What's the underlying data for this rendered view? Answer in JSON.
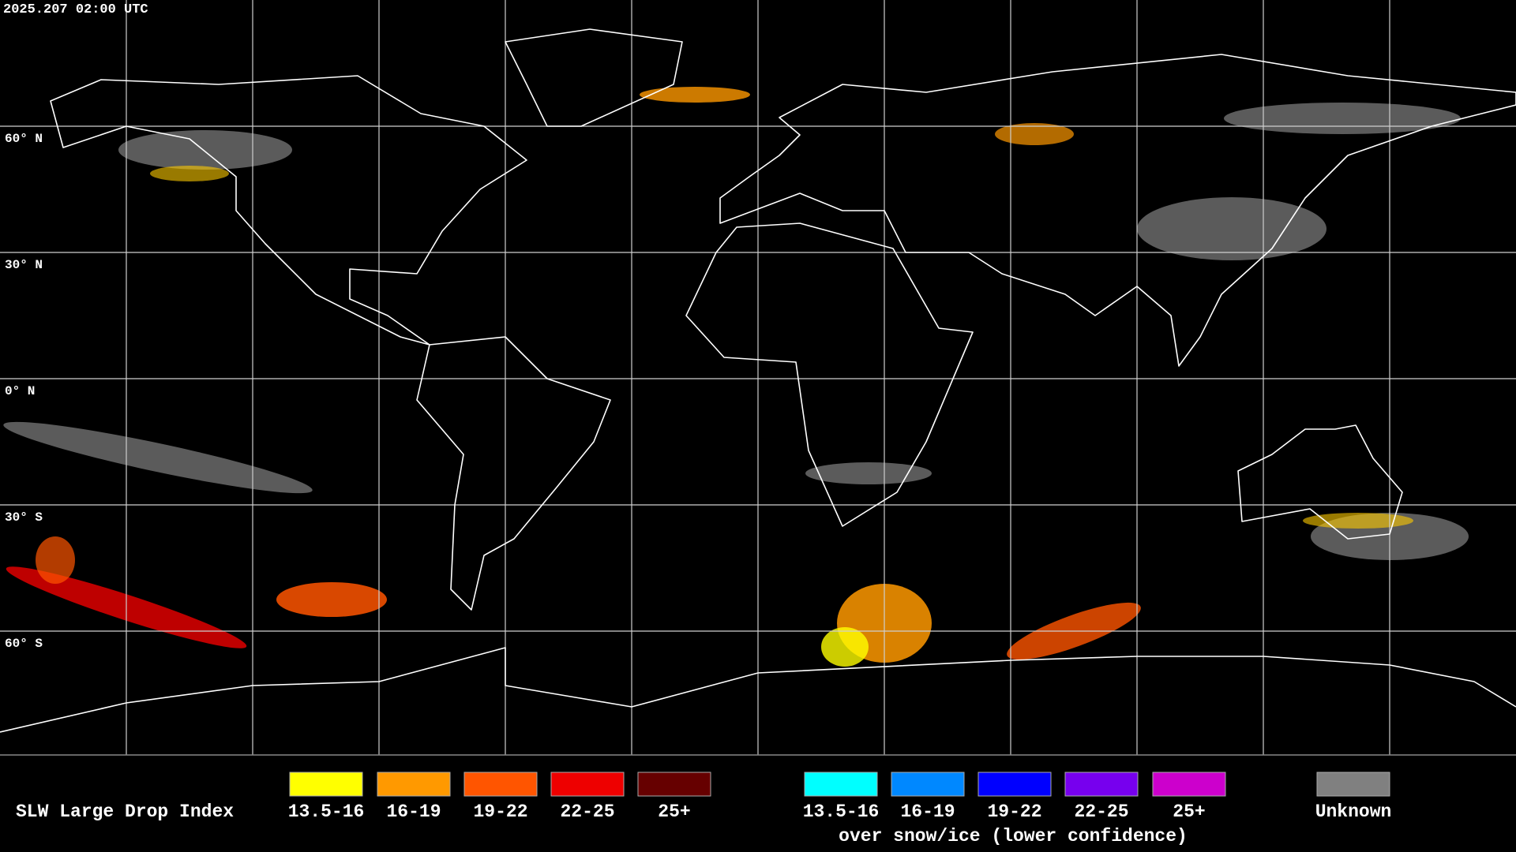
{
  "header": {
    "timestamp": "2025.207 02:00 UTC"
  },
  "map": {
    "latitude_labels": [
      "60° N",
      "30° N",
      "0° N",
      "30° S",
      "60° S"
    ]
  },
  "legend": {
    "title": "SLW Large Drop Index",
    "items": [
      {
        "label": "13.5-16",
        "color": "#ffff00"
      },
      {
        "label": "16-19",
        "color": "#ff9900"
      },
      {
        "label": "19-22",
        "color": "#ff5500"
      },
      {
        "label": "22-25",
        "color": "#ee0000"
      },
      {
        "label": "25+",
        "color": "#660000"
      },
      {
        "label": "13.5-16",
        "color": "#00ffff"
      },
      {
        "label": "16-19",
        "color": "#0088ff"
      },
      {
        "label": "19-22",
        "color": "#0000ff"
      },
      {
        "label": "22-25",
        "color": "#7700ee"
      },
      {
        "label": "25+",
        "color": "#cc00cc"
      },
      {
        "label": "Unknown",
        "color": "#808080"
      }
    ],
    "snow_caption": "over snow/ice (lower confidence)"
  }
}
